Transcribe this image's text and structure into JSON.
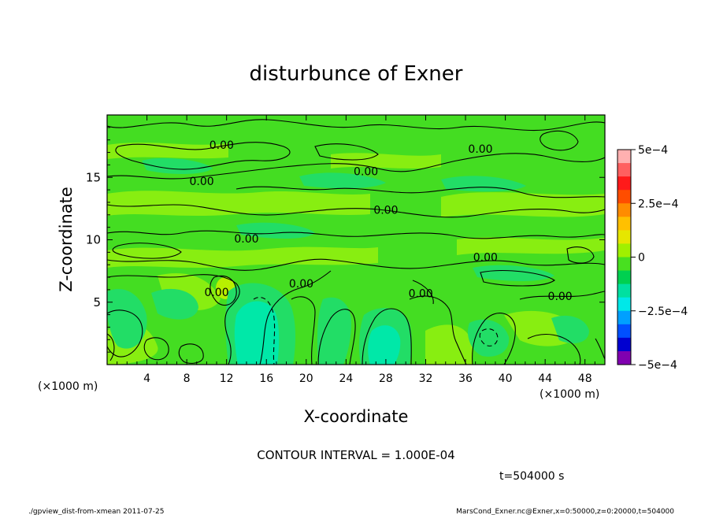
{
  "chart_data": {
    "type": "heatmap",
    "title": "disturbunce of Exner",
    "xlabel": "X-coordinate",
    "ylabel": "Z-coordinate",
    "x_unit": "(×1000 m)",
    "x_unit_right": "(×1000 m)",
    "xlim": [
      0,
      50
    ],
    "ylim": [
      0,
      20
    ],
    "x_ticks": [
      4,
      8,
      12,
      16,
      20,
      24,
      28,
      32,
      36,
      40,
      44,
      48
    ],
    "y_ticks": [
      5,
      10,
      15
    ],
    "contour_interval_text": "CONTOUR INTERVAL = 1.000E-04",
    "contour_label": "0.00",
    "contour_labels": [
      {
        "x": 9.5,
        "z": 14.7
      },
      {
        "x": 11.0,
        "z": 5.8
      },
      {
        "x": 11.5,
        "z": 17.6
      },
      {
        "x": 14.0,
        "z": 10.1
      },
      {
        "x": 19.5,
        "z": 6.5
      },
      {
        "x": 26.0,
        "z": 15.5
      },
      {
        "x": 28.0,
        "z": 12.4
      },
      {
        "x": 31.5,
        "z": 5.7
      },
      {
        "x": 37.5,
        "z": 17.3
      },
      {
        "x": 38.0,
        "z": 8.6
      },
      {
        "x": 45.5,
        "z": 5.5
      }
    ],
    "colorbar": {
      "min": -0.0005,
      "max": 0.0005,
      "tick_labels": [
        "5e−4",
        "2.5e−4",
        "0",
        "−2.5e−4",
        "−5e−4"
      ],
      "tick_values": [
        0.0005,
        0.00025,
        0,
        -0.00025,
        -0.0005
      ],
      "colors": [
        "#ffb0b0",
        "#ff6060",
        "#ff1a1a",
        "#ff4d00",
        "#ff8c00",
        "#ffc000",
        "#e6e600",
        "#a0f000",
        "#48e020",
        "#00d050",
        "#00e0a0",
        "#00e8e8",
        "#00a0ff",
        "#0050ff",
        "#0000d0",
        "#8000b0"
      ]
    },
    "field_colors": {
      "background": "#44dd22",
      "weak_positive": "#88ee11",
      "positive": "#b8f000",
      "weak_negative": "#22dd66",
      "negative": "#00e8a8",
      "strong_negative": "#44f0c8"
    }
  },
  "footer": {
    "time": "t=504000 s",
    "script": "./gpview_dist-from-xmean   2011-07-25",
    "source": "MarsCond_Exner.nc@Exner,x=0:50000,z=0:20000,t=504000"
  }
}
